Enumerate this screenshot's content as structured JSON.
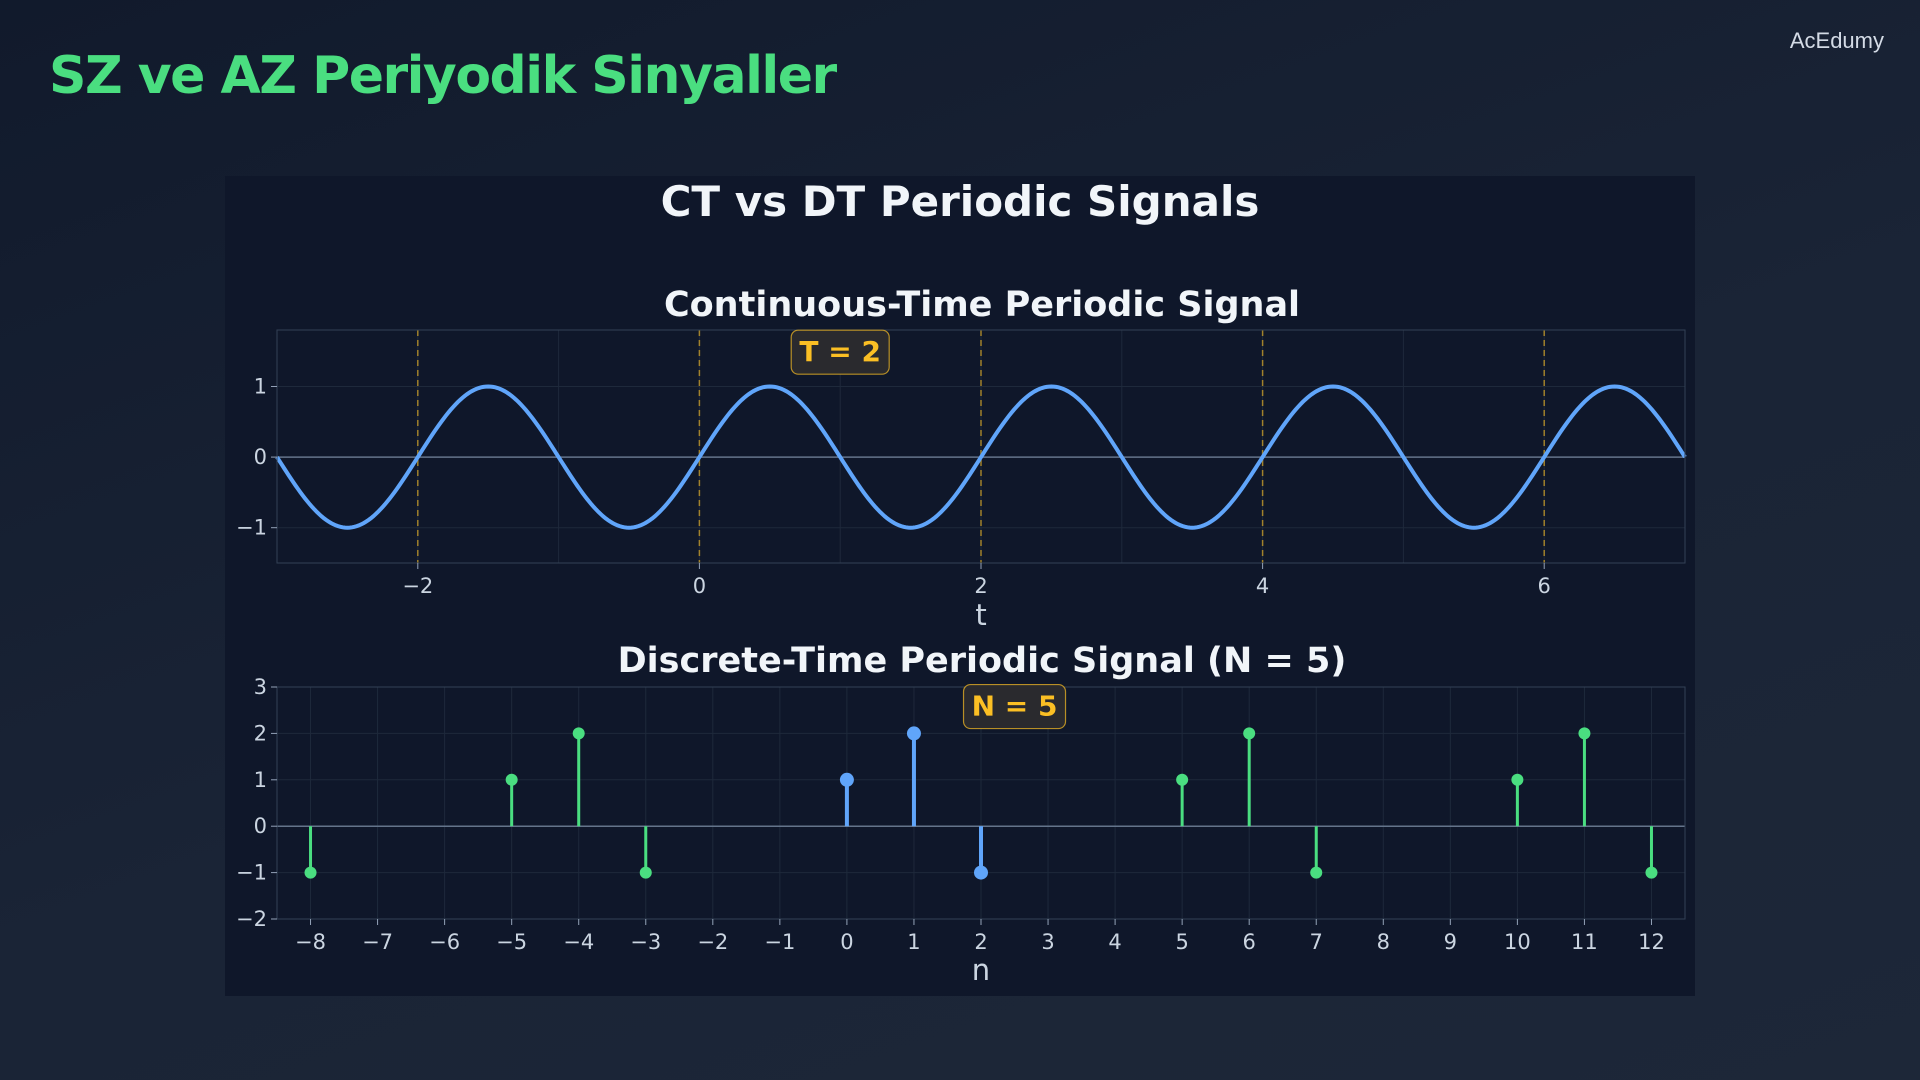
{
  "slide": {
    "title": "SZ ve AZ Periyodik Sinyaller",
    "brand": "AcEdumy"
  },
  "colors": {
    "accent_green": "#4ade80",
    "ct_signal": "#60a5fa",
    "dt_base_period": "#60a5fa",
    "dt_repeats": "#4ade80",
    "period_markers": "#fbbf24",
    "annotation_text": "#fbbf24"
  },
  "figure": {
    "suptitle": "CT vs DT Periodic Signals"
  },
  "chart_data": [
    {
      "type": "line",
      "title": "Continuous-Time Periodic Signal",
      "xlabel": "t",
      "ylabel": "",
      "xlim": [
        -3,
        7
      ],
      "ylim": [
        -1.5,
        1.8
      ],
      "xticks": [
        -2,
        0,
        2,
        4,
        6
      ],
      "yticks": [
        -1,
        0,
        1
      ],
      "function": "sin(pi*t)",
      "period": 2,
      "period_markers": [
        -2,
        0,
        2,
        4,
        6
      ],
      "annotation": {
        "text": "T = 2",
        "x": 1,
        "y": 1.5
      },
      "grid": true
    },
    {
      "type": "stem",
      "title": "Discrete-Time Periodic Signal (N = 5)",
      "xlabel": "n",
      "ylabel": "",
      "xlim": [
        -8.5,
        12.5
      ],
      "ylim": [
        -2,
        3
      ],
      "xticks": [
        -8,
        -7,
        -6,
        -5,
        -4,
        -3,
        -2,
        -1,
        0,
        1,
        2,
        3,
        4,
        5,
        6,
        7,
        8,
        9,
        10,
        11,
        12
      ],
      "yticks": [
        -2,
        -1,
        0,
        1,
        2,
        3
      ],
      "period": 5,
      "annotation": {
        "text": "N = 5",
        "x": 2.5,
        "y": 2.6
      },
      "grid": true,
      "series": [
        {
          "role": "base period",
          "n": [
            0,
            1,
            2,
            3,
            4
          ],
          "values": [
            1,
            2,
            -1,
            0,
            0
          ]
        },
        {
          "role": "repeats",
          "n": [
            -8,
            -7,
            -6,
            -5,
            -4,
            -3,
            -2,
            -1,
            5,
            6,
            7,
            8,
            9,
            10,
            11,
            12
          ],
          "values": [
            -1,
            0,
            0,
            1,
            2,
            -1,
            0,
            0,
            1,
            2,
            -1,
            0,
            0,
            1,
            2,
            -1
          ]
        }
      ]
    }
  ]
}
